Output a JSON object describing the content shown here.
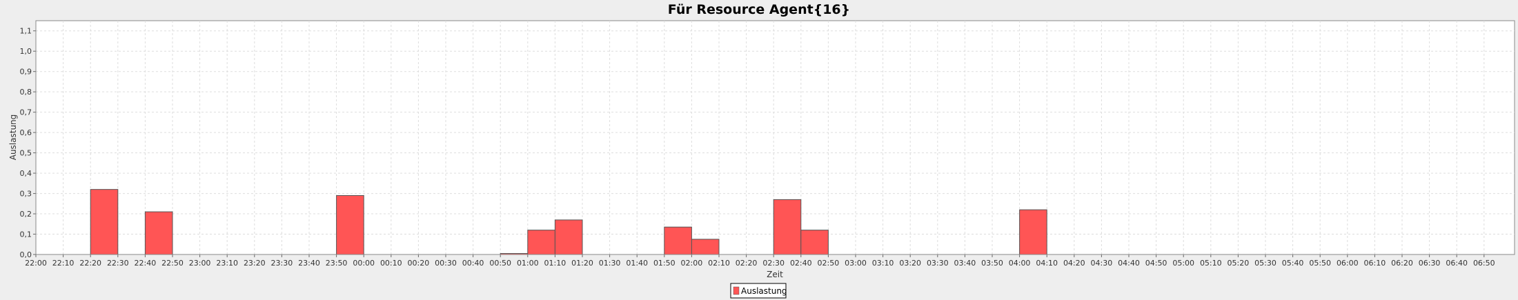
{
  "chart_data": {
    "type": "bar",
    "title": "Für Resource Agent{16}",
    "xlabel": "Zeit",
    "ylabel": "Auslastung",
    "ylim": [
      0,
      1.15
    ],
    "y_ticks": [
      "0,0",
      "0,1",
      "0,2",
      "0,3",
      "0,4",
      "0,5",
      "0,6",
      "0,7",
      "0,8",
      "0,9",
      "1,0",
      "1,1"
    ],
    "x_ticks": [
      "22:00",
      "22:10",
      "22:20",
      "22:30",
      "22:40",
      "22:50",
      "23:00",
      "23:10",
      "23:20",
      "23:30",
      "23:40",
      "23:50",
      "00:00",
      "00:10",
      "00:20",
      "00:30",
      "00:40",
      "00:50",
      "01:00",
      "01:10",
      "01:20",
      "01:30",
      "01:40",
      "01:50",
      "02:00",
      "02:10",
      "02:20",
      "02:30",
      "02:40",
      "02:50",
      "03:00",
      "03:10",
      "03:20",
      "03:30",
      "03:40",
      "03:50",
      "04:00",
      "04:10",
      "04:20",
      "04:30",
      "04:40",
      "04:50",
      "05:00",
      "05:10",
      "05:20",
      "05:30",
      "05:40",
      "05:50",
      "06:00",
      "06:10",
      "06:20",
      "06:30",
      "06:40",
      "06:50"
    ],
    "bin_minutes": 10,
    "series": [
      {
        "name": "Auslastung",
        "color": "#ff5555",
        "bars": [
          {
            "start": "22:20",
            "value": 0.32
          },
          {
            "start": "22:40",
            "value": 0.21
          },
          {
            "start": "23:50",
            "value": 0.29
          },
          {
            "start": "00:50",
            "value": 0.005
          },
          {
            "start": "01:00",
            "value": 0.12
          },
          {
            "start": "01:10",
            "value": 0.17
          },
          {
            "start": "01:50",
            "value": 0.135
          },
          {
            "start": "02:00",
            "value": 0.075
          },
          {
            "start": "02:30",
            "value": 0.27
          },
          {
            "start": "02:40",
            "value": 0.12
          },
          {
            "start": "04:00",
            "value": 0.22
          }
        ]
      }
    ],
    "grid": true,
    "legend_position": "bottom-center"
  }
}
